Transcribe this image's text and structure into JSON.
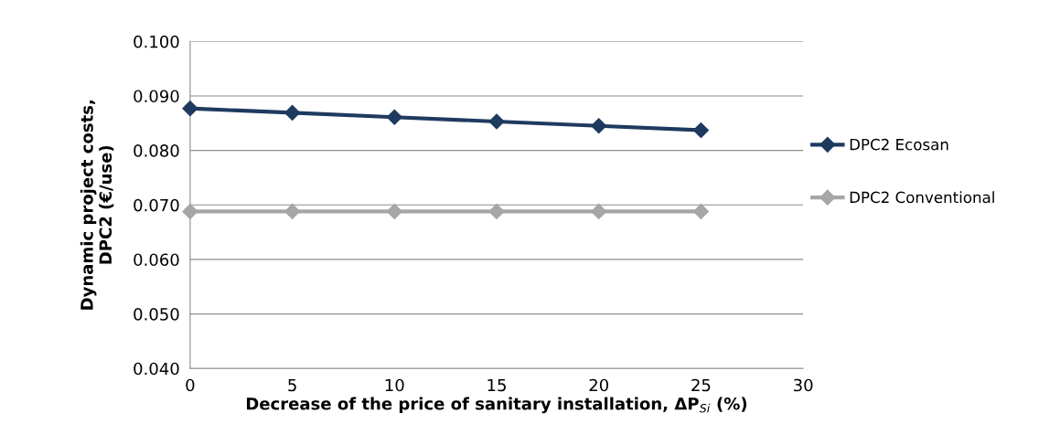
{
  "chart_data": {
    "type": "line",
    "xlabel": "Decrease of the price of sanitary installation, ΔP$_{Si}$ (%)",
    "ylabel": "Dynamic project costs,\nDPC2 (€/use)",
    "x": [
      0,
      5,
      10,
      15,
      20,
      25
    ],
    "series": [
      {
        "name": "DPC2 Ecosan",
        "color": "#1f3a5f",
        "values": [
          0.0877,
          0.0869,
          0.0861,
          0.0853,
          0.0845,
          0.0837
        ]
      },
      {
        "name": "DPC2 Conventional",
        "color": "#a6a6a6",
        "values": [
          0.0688,
          0.0688,
          0.0688,
          0.0688,
          0.0688,
          0.0688
        ]
      }
    ],
    "xlim": [
      0,
      30
    ],
    "xticks": [
      0,
      5,
      10,
      15,
      20,
      25,
      30
    ],
    "ylim": [
      0.04,
      0.1
    ],
    "yticks": [
      {
        "value": 0.04,
        "label": "0.040"
      },
      {
        "value": 0.05,
        "label": "0.050"
      },
      {
        "value": 0.06,
        "label": "0.060"
      },
      {
        "value": 0.07,
        "label": "0.070"
      },
      {
        "value": 0.08,
        "label": "0.080"
      },
      {
        "value": 0.09,
        "label": "0.090"
      },
      {
        "value": 0.1,
        "label": "0.100"
      }
    ],
    "grid": "y",
    "legend": "right",
    "marker": "diamond",
    "line_style": "solid"
  }
}
